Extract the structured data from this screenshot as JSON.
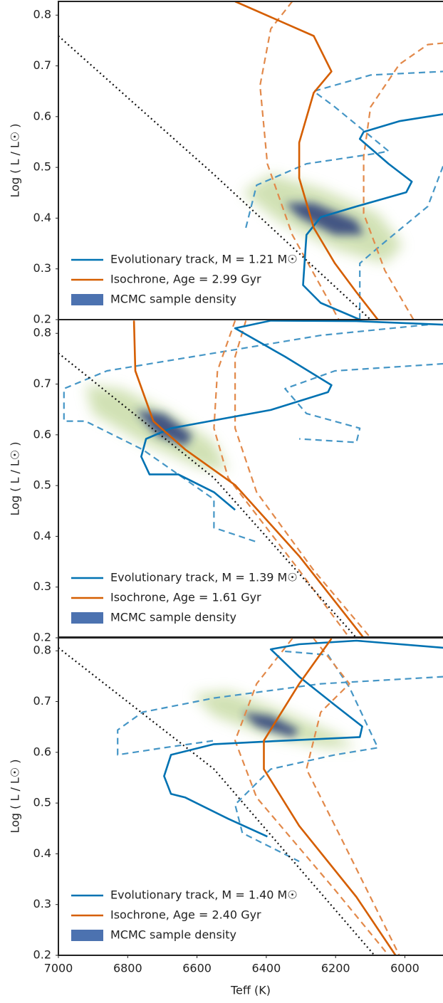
{
  "chart_data": [
    {
      "type": "line",
      "ylabel": "Log ( L / L☉ )",
      "xlim": [
        7000,
        5890
      ],
      "ylim": [
        0.2,
        0.827
      ],
      "yticks": [
        0.2,
        0.3,
        0.4,
        0.5,
        0.6,
        0.7,
        0.8
      ],
      "legend": "lower left",
      "series": [
        {
          "name": "MCMC sample density",
          "style": "density",
          "color": "#cfe0b0",
          "legend_color": "#4c72b0",
          "x": [
            6469,
            6387,
            6243,
            6078,
            6006,
            6058,
            6202,
            6366
          ],
          "values": [
            0.451,
            0.486,
            0.458,
            0.409,
            0.346,
            0.311,
            0.339,
            0.395
          ]
        },
        {
          "style": "density",
          "color": "#2b3d7a",
          "x": [
            6346,
            6263,
            6140,
            6119,
            6202,
            6305
          ],
          "values": [
            0.43,
            0.43,
            0.395,
            0.367,
            0.367,
            0.402
          ]
        },
        {
          "style": "dashed",
          "color": "#4596c6",
          "x": [
            6459,
            6428,
            6284,
            6078,
            6047,
            6202,
            6263,
            6099,
            5889
          ],
          "values": [
            0.381,
            0.465,
            0.507,
            0.528,
            0.532,
            0.619,
            0.65,
            0.682,
            0.689
          ]
        },
        {
          "style": "dashed",
          "color": "#4596c6",
          "x": [
            6130,
            6130,
            6058,
            5934,
            5889
          ],
          "values": [
            0.2,
            0.311,
            0.353,
            0.423,
            0.504
          ]
        },
        {
          "style": "dashed",
          "color": "#e2894a",
          "x": [
            6325,
            6387,
            6418,
            6397,
            6325,
            6222,
            6191
          ],
          "values": [
            0.827,
            0.773,
            0.661,
            0.507,
            0.367,
            0.24,
            0.2
          ]
        },
        {
          "style": "dashed",
          "color": "#e2894a",
          "x": [
            5975,
            6058,
            6119,
            6119,
            6099,
            6016,
            5934,
            5889
          ],
          "values": [
            0.2,
            0.297,
            0.409,
            0.521,
            0.619,
            0.703,
            0.742,
            0.745
          ]
        },
        {
          "style": "dotted",
          "color": "#111111",
          "x": [
            7000,
            6551,
            6099
          ],
          "values": [
            0.759,
            0.486,
            0.2
          ]
        },
        {
          "name": "Evolutionary track, M = 1.21 M☉",
          "style": "solid",
          "color": "#0072b2",
          "x": [
            6130,
            6243,
            6294,
            6284,
            6243,
            6140,
            5996,
            5980,
            6047,
            6130,
            6119,
            6016,
            5889
          ],
          "values": [
            0.2,
            0.233,
            0.268,
            0.367,
            0.402,
            0.423,
            0.451,
            0.472,
            0.507,
            0.556,
            0.57,
            0.591,
            0.605
          ]
        },
        {
          "name": "Isochrone, Age = 2.99 Gyr",
          "style": "solid",
          "color": "#d55e00",
          "x": [
            6490,
            6263,
            6212,
            6263,
            6305,
            6305,
            6263,
            6202,
            6140,
            6078
          ],
          "values": [
            0.827,
            0.759,
            0.689,
            0.647,
            0.549,
            0.479,
            0.381,
            0.311,
            0.254,
            0.2
          ]
        }
      ]
    },
    {
      "type": "line",
      "ylabel": "Log ( L / L☉ )",
      "xlim": [
        7000,
        5890
      ],
      "ylim": [
        0.2,
        0.827
      ],
      "yticks": [
        0.2,
        0.3,
        0.4,
        0.5,
        0.6,
        0.7,
        0.8
      ],
      "legend": "lower left",
      "series": [
        {
          "name": "MCMC sample density",
          "style": "density",
          "color": "#cfe0b0",
          "legend_color": "#4c72b0",
          "x": [
            6922,
            6819,
            6675,
            6551,
            6510,
            6593,
            6757,
            6901
          ],
          "values": [
            0.698,
            0.691,
            0.642,
            0.585,
            0.529,
            0.536,
            0.585,
            0.642
          ]
        },
        {
          "style": "density",
          "color": "#2b3d7a",
          "x": [
            6778,
            6695,
            6613,
            6634,
            6716
          ],
          "values": [
            0.649,
            0.642,
            0.599,
            0.578,
            0.599
          ]
        },
        {
          "style": "dashed",
          "color": "#4596c6",
          "x": [
            5889,
            6202,
            6346,
            6284,
            6130,
            6140,
            6305
          ],
          "values": [
            0.74,
            0.726,
            0.691,
            0.642,
            0.613,
            0.585,
            0.592
          ]
        },
        {
          "style": "dashed",
          "color": "#4596c6",
          "x": [
            5934,
            6243,
            6551,
            6860,
            6984,
            6984,
            6922,
            6757,
            6551,
            6551,
            6428
          ],
          "values": [
            0.817,
            0.796,
            0.761,
            0.726,
            0.691,
            0.627,
            0.627,
            0.571,
            0.473,
            0.417,
            0.389
          ]
        },
        {
          "style": "dashed",
          "color": "#e2894a",
          "x": [
            6490,
            6541,
            6551,
            6510,
            6305,
            6160
          ],
          "values": [
            0.825,
            0.726,
            0.613,
            0.515,
            0.333,
            0.2
          ]
        },
        {
          "style": "dashed",
          "color": "#e2894a",
          "x": [
            6459,
            6490,
            6490,
            6428,
            6263,
            6099
          ],
          "values": [
            0.825,
            0.754,
            0.613,
            0.487,
            0.333,
            0.2
          ]
        },
        {
          "style": "dotted",
          "color": "#111111",
          "x": [
            7000,
            6551,
            6140
          ],
          "values": [
            0.761,
            0.515,
            0.2
          ]
        },
        {
          "name": "Evolutionary track, M = 1.39 M☉",
          "style": "solid",
          "color": "#0072b2",
          "x": [
            6490,
            6551,
            6654,
            6737,
            6761,
            6747,
            6675,
            6387,
            6222,
            6212,
            6346,
            6490,
            6387,
            6140,
            5889
          ],
          "values": [
            0.452,
            0.487,
            0.522,
            0.522,
            0.557,
            0.592,
            0.613,
            0.649,
            0.684,
            0.698,
            0.754,
            0.81,
            0.825,
            0.824,
            0.817
          ]
        },
        {
          "name": "Isochrone, Age = 1.61 Gyr",
          "style": "solid",
          "color": "#d55e00",
          "x": [
            6782,
            6778,
            6726,
            6634,
            6490,
            6305,
            6119
          ],
          "values": [
            0.825,
            0.726,
            0.627,
            0.571,
            0.501,
            0.361,
            0.2
          ]
        }
      ]
    },
    {
      "type": "line",
      "ylabel": "Log ( L / L☉ )",
      "xlabel": "Teff (K)",
      "xlim": [
        7000,
        5890
      ],
      "ylim": [
        0.2,
        0.827
      ],
      "xticks": [
        7000,
        6800,
        6600,
        6400,
        6200,
        6000
      ],
      "yticks": [
        0.2,
        0.3,
        0.4,
        0.5,
        0.6,
        0.7,
        0.8
      ],
      "legend": "lower left",
      "series": [
        {
          "name": "MCMC sample density",
          "style": "density",
          "color": "#cfe0b0",
          "legend_color": "#4c72b0",
          "x": [
            6613,
            6510,
            6346,
            6202,
            6140,
            6222,
            6387,
            6551
          ],
          "values": [
            0.714,
            0.721,
            0.679,
            0.637,
            0.609,
            0.609,
            0.63,
            0.672
          ]
        },
        {
          "style": "density",
          "color": "#2b3d7a",
          "x": [
            6469,
            6387,
            6305,
            6325,
            6428
          ],
          "values": [
            0.679,
            0.672,
            0.644,
            0.63,
            0.651
          ]
        },
        {
          "style": "dashed",
          "color": "#4596c6",
          "x": [
            5889,
            6243,
            6551,
            6757,
            6829,
            6829,
            6695,
            6551
          ],
          "values": [
            0.749,
            0.735,
            0.707,
            0.679,
            0.644,
            0.595,
            0.609,
            0.623
          ]
        },
        {
          "style": "dashed",
          "color": "#4596c6",
          "x": [
            6346,
            6222,
            6160,
            6078,
            6202,
            6387,
            6490,
            6469,
            6305
          ],
          "values": [
            0.799,
            0.792,
            0.728,
            0.609,
            0.595,
            0.567,
            0.497,
            0.441,
            0.385
          ]
        },
        {
          "style": "dashed",
          "color": "#e2894a",
          "x": [
            6325,
            6428,
            6490,
            6428,
            6202,
            6047
          ],
          "values": [
            0.824,
            0.735,
            0.623,
            0.511,
            0.329,
            0.2
          ]
        },
        {
          "style": "dashed",
          "color": "#e2894a",
          "x": [
            6263,
            6160,
            6243,
            6284,
            6181,
            6016
          ],
          "values": [
            0.824,
            0.735,
            0.679,
            0.567,
            0.427,
            0.2
          ]
        },
        {
          "style": "dotted",
          "color": "#111111",
          "x": [
            7000,
            6551,
            6088
          ],
          "values": [
            0.806,
            0.567,
            0.2
          ]
        },
        {
          "name": "Evolutionary track, M = 1.40 M☉",
          "style": "solid",
          "color": "#0072b2",
          "x": [
            6397,
            6510,
            6634,
            6675,
            6695,
            6675,
            6551,
            6346,
            6130,
            6123,
            6202,
            6305,
            6387,
            6305,
            6140,
            5889
          ],
          "values": [
            0.434,
            0.469,
            0.511,
            0.518,
            0.553,
            0.595,
            0.616,
            0.623,
            0.63,
            0.651,
            0.693,
            0.749,
            0.803,
            0.813,
            0.82,
            0.806
          ]
        },
        {
          "name": "Isochrone, Age = 2.40 Gyr",
          "style": "solid",
          "color": "#d55e00",
          "x": [
            6212,
            6305,
            6407,
            6407,
            6305,
            6140,
            6027
          ],
          "values": [
            0.824,
            0.735,
            0.623,
            0.567,
            0.455,
            0.315,
            0.2
          ]
        }
      ]
    }
  ]
}
